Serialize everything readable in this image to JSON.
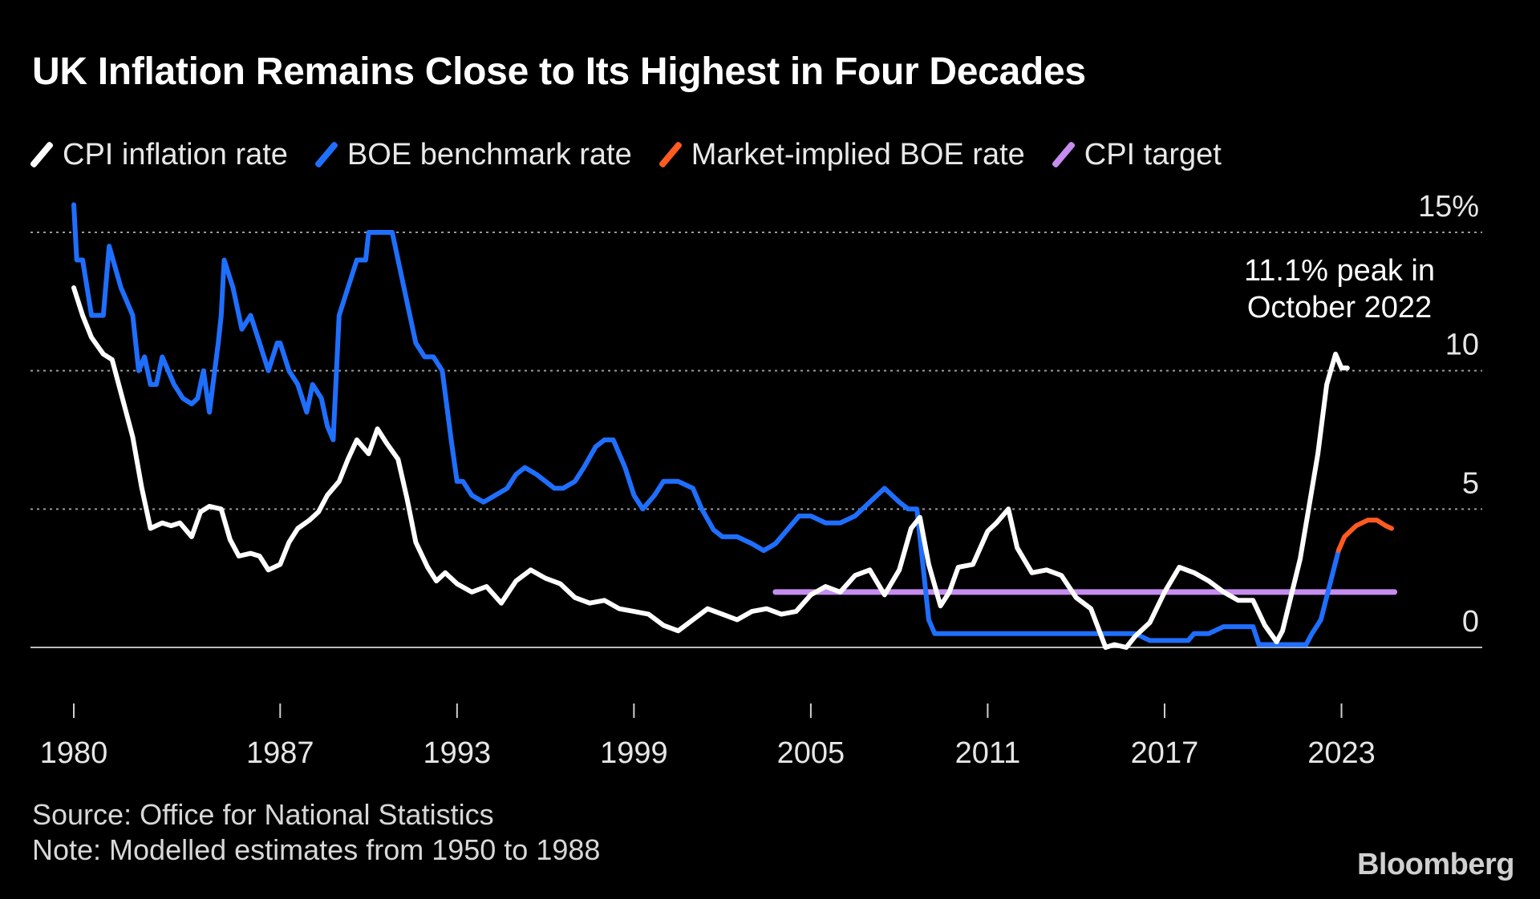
{
  "chart_data": {
    "type": "line",
    "title": "UK Inflation Remains Close to Its Highest in Four Decades",
    "xlabel": "",
    "ylabel": "",
    "xlim": [
      1980,
      2025
    ],
    "ylim": [
      0,
      15
    ],
    "x_ticks": [
      1980,
      1987,
      1993,
      1999,
      2005,
      2011,
      2017,
      2023
    ],
    "x_tick_labels": [
      "1980",
      "1987",
      "1993",
      "1999",
      "2005",
      "2011",
      "2017",
      "2023"
    ],
    "y_ticks": [
      {
        "value": 15,
        "label": "15%"
      },
      {
        "value": 10,
        "label": "10"
      },
      {
        "value": 5,
        "label": "5"
      },
      {
        "value": 0,
        "label": "0"
      }
    ],
    "grid": "horizontal dotted",
    "legend_placement": "top-left",
    "series": [
      {
        "name": "CPI inflation rate",
        "color": "#ffffff",
        "x": [
          1980.0,
          1980.3,
          1980.6,
          1981.0,
          1981.3,
          1981.6,
          1982.0,
          1982.3,
          1982.6,
          1983.0,
          1983.3,
          1983.6,
          1984.0,
          1984.3,
          1984.6,
          1985.0,
          1985.3,
          1985.6,
          1986.0,
          1986.3,
          1986.6,
          1987.0,
          1987.3,
          1987.6,
          1988.0,
          1988.3,
          1988.6,
          1989.0,
          1989.3,
          1989.6,
          1990.0,
          1990.3,
          1990.6,
          1991.0,
          1991.3,
          1991.6,
          1992.0,
          1992.3,
          1992.6,
          1993.0,
          1993.5,
          1994.0,
          1994.5,
          1995.0,
          1995.5,
          1996.0,
          1996.5,
          1997.0,
          1997.5,
          1998.0,
          1998.5,
          1999.0,
          1999.5,
          2000.0,
          2000.5,
          2001.0,
          2001.5,
          2002.0,
          2002.5,
          2003.0,
          2003.5,
          2004.0,
          2004.5,
          2005.0,
          2005.5,
          2006.0,
          2006.5,
          2007.0,
          2007.5,
          2008.0,
          2008.4,
          2008.7,
          2009.0,
          2009.4,
          2009.7,
          2010.0,
          2010.5,
          2011.0,
          2011.3,
          2011.7,
          2012.0,
          2012.5,
          2013.0,
          2013.5,
          2014.0,
          2014.5,
          2015.0,
          2015.3,
          2015.7,
          2016.0,
          2016.5,
          2017.0,
          2017.5,
          2018.0,
          2018.5,
          2019.0,
          2019.5,
          2020.0,
          2020.4,
          2020.8,
          2021.0,
          2021.3,
          2021.6,
          2021.9,
          2022.2,
          2022.5,
          2022.8,
          2023.0,
          2023.2
        ],
        "values": [
          13.0,
          12.0,
          11.2,
          10.6,
          10.4,
          9.2,
          7.6,
          5.8,
          4.3,
          4.5,
          4.4,
          4.5,
          4.0,
          4.9,
          5.1,
          5.0,
          3.9,
          3.3,
          3.4,
          3.3,
          2.8,
          3.0,
          3.8,
          4.3,
          4.6,
          4.9,
          5.5,
          6.0,
          6.8,
          7.5,
          7.0,
          7.9,
          7.4,
          6.8,
          5.4,
          3.8,
          2.9,
          2.4,
          2.7,
          2.3,
          2.0,
          2.2,
          1.6,
          2.4,
          2.8,
          2.5,
          2.3,
          1.8,
          1.6,
          1.7,
          1.4,
          1.3,
          1.2,
          0.8,
          0.6,
          1.0,
          1.4,
          1.2,
          1.0,
          1.3,
          1.4,
          1.2,
          1.3,
          1.9,
          2.2,
          2.0,
          2.6,
          2.8,
          1.9,
          2.8,
          4.3,
          4.7,
          3.0,
          1.5,
          2.0,
          2.9,
          3.0,
          4.2,
          4.5,
          5.0,
          3.6,
          2.7,
          2.8,
          2.6,
          1.8,
          1.4,
          0.0,
          0.1,
          0.0,
          0.4,
          0.9,
          2.0,
          2.9,
          2.7,
          2.4,
          2.0,
          1.7,
          1.7,
          0.8,
          0.2,
          0.6,
          1.9,
          3.2,
          5.1,
          7.0,
          9.5,
          10.6,
          10.1,
          10.1
        ]
      },
      {
        "name": "BOE benchmark rate",
        "color": "#1f6fff",
        "x": [
          1980.0,
          1980.1,
          1980.3,
          1980.6,
          1980.9,
          1981.0,
          1981.2,
          1981.6,
          1981.8,
          1982.0,
          1982.2,
          1982.4,
          1982.6,
          1982.8,
          1983.0,
          1983.4,
          1983.7,
          1984.0,
          1984.2,
          1984.4,
          1984.6,
          1984.9,
          1985.0,
          1985.1,
          1985.4,
          1985.7,
          1986.0,
          1986.3,
          1986.6,
          1986.9,
          1987.0,
          1987.3,
          1987.6,
          1987.9,
          1988.1,
          1988.4,
          1988.6,
          1988.8,
          1989.0,
          1989.3,
          1989.6,
          1989.9,
          1990.0,
          1990.4,
          1990.8,
          1991.0,
          1991.3,
          1991.6,
          1991.9,
          1992.2,
          1992.5,
          1992.8,
          1993.0,
          1993.2,
          1993.5,
          1993.9,
          1994.3,
          1994.7,
          1995.0,
          1995.3,
          1995.7,
          1996.0,
          1996.3,
          1996.6,
          1997.0,
          1997.3,
          1997.7,
          1998.0,
          1998.3,
          1998.7,
          1999.0,
          1999.3,
          1999.7,
          2000.0,
          2000.5,
          2001.0,
          2001.3,
          2001.7,
          2002.0,
          2002.5,
          2003.0,
          2003.4,
          2003.8,
          2004.2,
          2004.6,
          2005.0,
          2005.5,
          2006.0,
          2006.5,
          2007.0,
          2007.5,
          2008.0,
          2008.3,
          2008.6,
          2008.8,
          2009.0,
          2009.2,
          2010.0,
          2012.0,
          2014.0,
          2016.0,
          2016.5,
          2017.0,
          2017.8,
          2018.0,
          2018.5,
          2019.0,
          2019.5,
          2020.0,
          2020.2,
          2021.0,
          2021.8,
          2022.0,
          2022.3,
          2022.6,
          2022.9
        ],
        "values": [
          16.0,
          14.0,
          14.0,
          12.0,
          12.0,
          12.0,
          14.5,
          13.0,
          12.5,
          12.0,
          10.0,
          10.5,
          9.5,
          9.5,
          10.5,
          9.5,
          9.0,
          8.8,
          9.0,
          10.0,
          8.5,
          11.0,
          12.0,
          14.0,
          13.0,
          11.5,
          12.0,
          11.0,
          10.0,
          11.0,
          11.0,
          10.0,
          9.5,
          8.5,
          9.5,
          9.0,
          8.0,
          7.5,
          12.0,
          13.0,
          14.0,
          14.0,
          15.0,
          15.0,
          15.0,
          14.0,
          12.5,
          11.0,
          10.5,
          10.5,
          10.0,
          7.5,
          6.0,
          6.0,
          5.5,
          5.25,
          5.5,
          5.75,
          6.25,
          6.5,
          6.25,
          6.0,
          5.75,
          5.75,
          6.0,
          6.5,
          7.25,
          7.5,
          7.5,
          6.5,
          5.5,
          5.0,
          5.5,
          6.0,
          6.0,
          5.75,
          5.0,
          4.25,
          4.0,
          4.0,
          3.75,
          3.5,
          3.75,
          4.25,
          4.75,
          4.75,
          4.5,
          4.5,
          4.75,
          5.25,
          5.75,
          5.25,
          5.0,
          5.0,
          3.0,
          1.0,
          0.5,
          0.5,
          0.5,
          0.5,
          0.5,
          0.25,
          0.25,
          0.25,
          0.5,
          0.5,
          0.75,
          0.75,
          0.75,
          0.1,
          0.1,
          0.1,
          0.5,
          1.0,
          2.25,
          3.5
        ]
      },
      {
        "name": "Market-implied BOE rate",
        "color": "#ff5a1f",
        "x": [
          2022.9,
          2023.1,
          2023.3,
          2023.5,
          2023.7,
          2023.9,
          2024.2,
          2024.5,
          2024.7
        ],
        "values": [
          3.5,
          4.0,
          4.2,
          4.4,
          4.5,
          4.6,
          4.6,
          4.4,
          4.3
        ]
      },
      {
        "name": "CPI target",
        "color": "#c58df0",
        "x": [
          2003.8,
          2024.8
        ],
        "values": [
          2.0,
          2.0
        ]
      }
    ],
    "annotations": [
      {
        "text_lines": [
          "11.1% peak in",
          "October 2022"
        ]
      }
    ]
  },
  "legend": [
    "CPI inflation rate",
    "BOE benchmark rate",
    "Market-implied BOE rate",
    "CPI target"
  ],
  "footer": {
    "source": "Source: Office for National Statistics",
    "note": "Note: Modelled estimates from 1950 to 1988"
  },
  "brand": "Bloomberg"
}
